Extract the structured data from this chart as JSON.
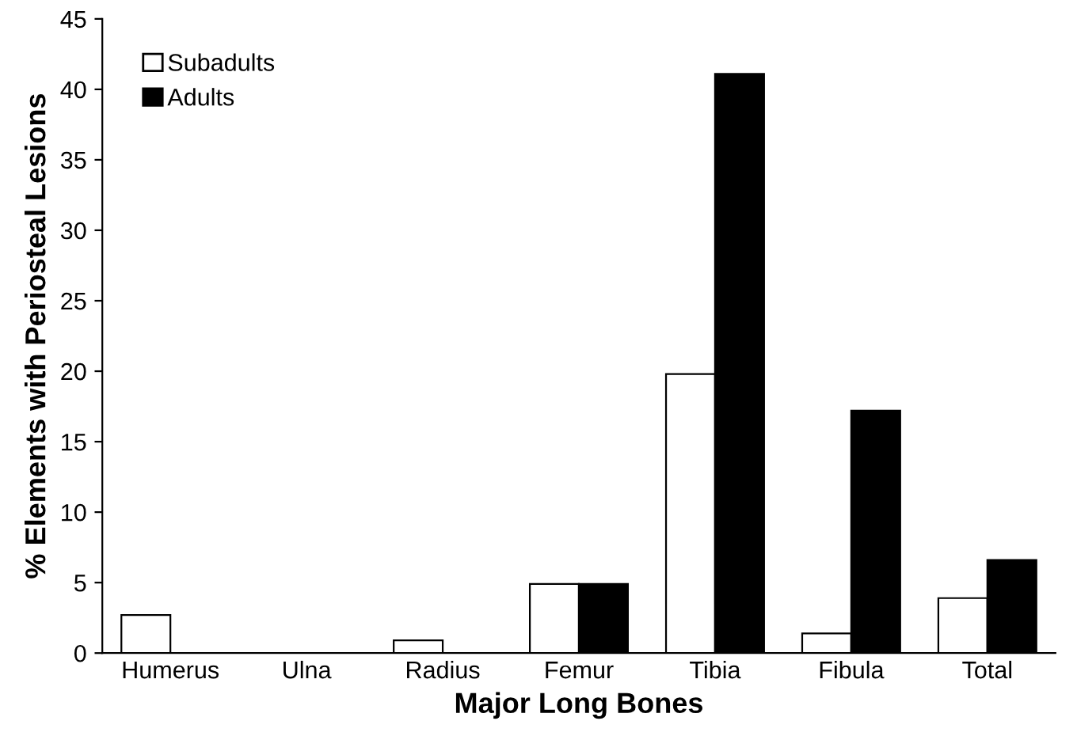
{
  "chart_data": {
    "type": "bar",
    "xlabel": "Major Long Bones",
    "ylabel": "% Elements with Periosteal Lesions",
    "categories": [
      "Humerus",
      "Ulna",
      "Radius",
      "Femur",
      "Tibia",
      "Fibula",
      "Total"
    ],
    "series": [
      {
        "name": "Subadults",
        "color": "#ffffff",
        "values": [
          2.7,
          0,
          0.9,
          4.9,
          19.8,
          1.4,
          3.9
        ]
      },
      {
        "name": "Adults",
        "color": "#000000",
        "values": [
          0,
          0,
          0,
          4.9,
          41.1,
          17.2,
          6.6
        ]
      }
    ],
    "ylim": [
      0,
      45
    ],
    "yticks": [
      0,
      5,
      10,
      15,
      20,
      25,
      30,
      35,
      40,
      45
    ],
    "grid": false,
    "legend": "top left"
  }
}
